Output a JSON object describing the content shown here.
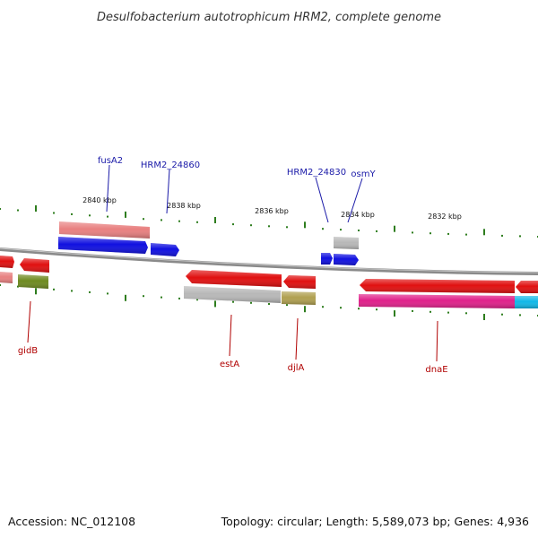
{
  "title": "Desulfobacterium autotrophicum HRM2, complete genome",
  "footer": {
    "accession": "Accession: NC_012108",
    "summary": "Topology: circular; Length: 5,589,073 bp; Genes: 4,936"
  },
  "scale_labels": [
    "2840 kbp",
    "2838 kbp",
    "2836 kbp",
    "2834 kbp",
    "2832 kbp"
  ],
  "gene_labels": {
    "top": [
      "fusA2",
      "HRM2_24860",
      "HRM2_24830",
      "osmY"
    ],
    "bottom": [
      "gidB",
      "estA",
      "djlA",
      "dnaE"
    ]
  },
  "colors": {
    "backbone": "#888888",
    "tick": "#2e7d1e",
    "label_top": "#1a1aa8",
    "label_bottom": "#b00000",
    "gene_red": "#e01010",
    "gene_blue": "#1010e0",
    "gene_pink": "#e88080",
    "gene_gray": "#b8b8b8",
    "gene_olive": "#6e8a20",
    "gene_khaki": "#b0a050",
    "gene_magenta": "#e0208a",
    "gene_cyan": "#10b8e8"
  }
}
